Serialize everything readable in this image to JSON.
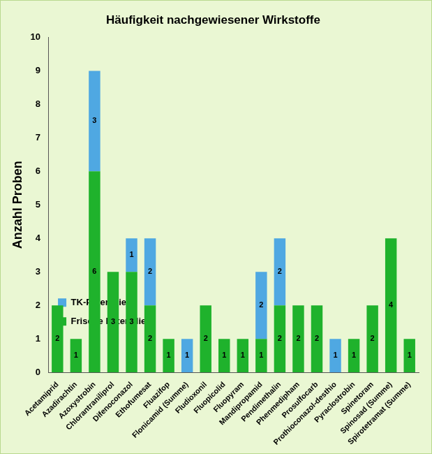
{
  "chart_data": {
    "type": "bar",
    "title": "Häufigkeit nachgewiesener Wirkstoffe",
    "y_label": "Anzahl Proben",
    "categories": [
      "Acetamiprid",
      "Azadirachtin",
      "Azoxystrobin",
      "Chlorantraniliprol",
      "Difenoconazol",
      "Ethofumesat",
      "Fluazifop",
      "Flonicamid (Summe)",
      "Fludioxonil",
      "Fluopicolid",
      "Fluopyram",
      "Mandipropamid",
      "Pendimethalin",
      "Phenmedipham",
      "Prosulfocarb",
      "Prothioconazol-desthio",
      "Pyraclostrobin",
      "Spinetoram",
      "Spinosad (Summe)",
      "Spirotetramat (Summe)"
    ],
    "series": [
      {
        "name": "Frische Petersilie",
        "color": "#1fb22c",
        "values": [
          2,
          1,
          6,
          3,
          3,
          2,
          1,
          0,
          2,
          1,
          1,
          1,
          2,
          2,
          2,
          0,
          1,
          2,
          4,
          1
        ]
      },
      {
        "name": "TK-Petersilie",
        "color": "#4fa8e2",
        "values": [
          0,
          0,
          3,
          0,
          1,
          2,
          0,
          1,
          0,
          0,
          0,
          2,
          2,
          0,
          0,
          1,
          0,
          0,
          0,
          0
        ]
      }
    ],
    "stacked": true,
    "data_labels": true,
    "legend": "upper right",
    "grid": false,
    "ylim": [
      0,
      10
    ],
    "yticks": [
      0,
      1,
      2,
      3,
      4,
      5,
      6,
      7,
      8,
      9,
      10
    ]
  }
}
